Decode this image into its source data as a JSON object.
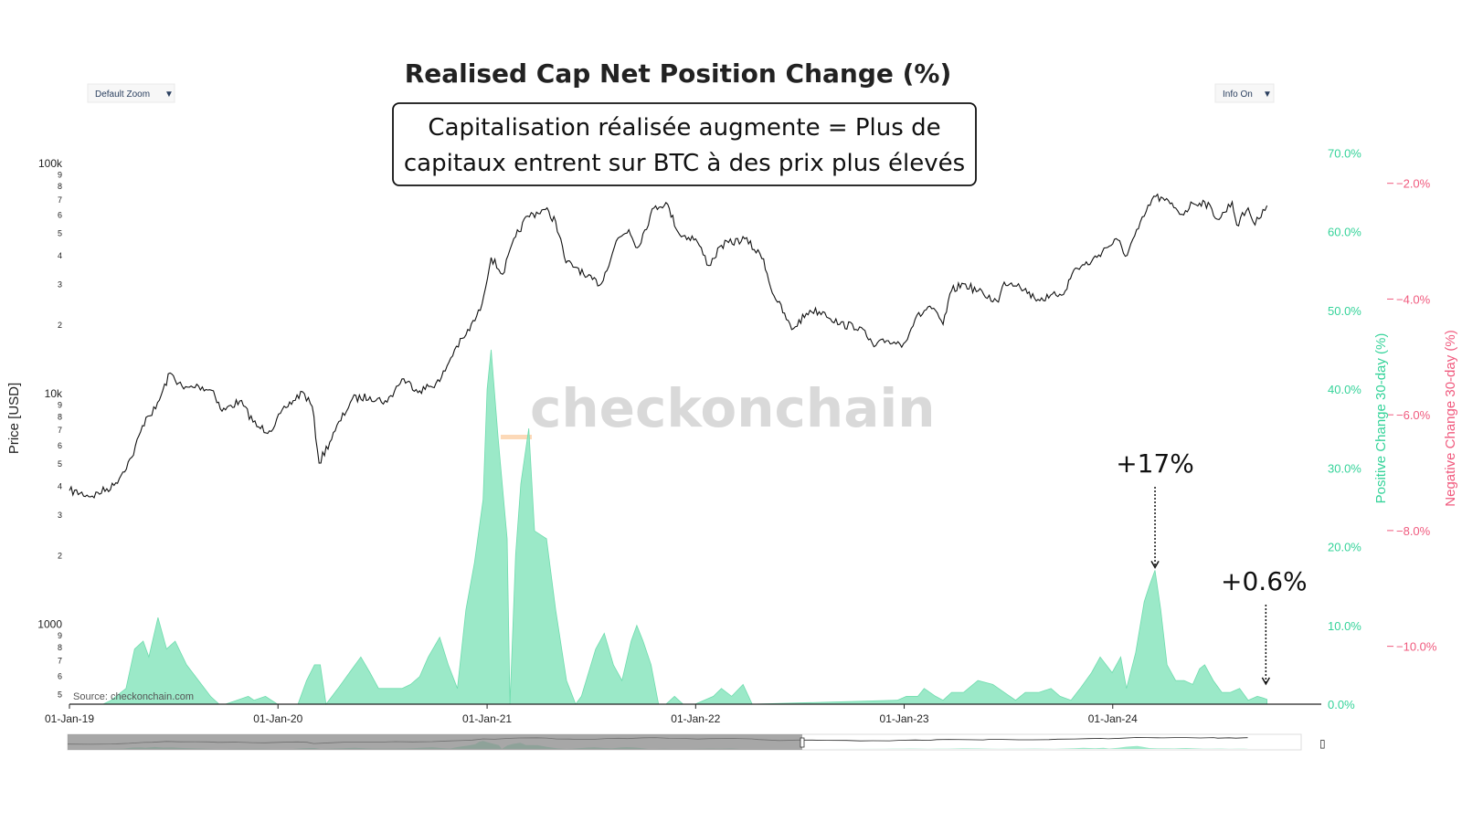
{
  "title": "Realised Cap Net Position Change (%)",
  "controls": {
    "zoom_label": "Default Zoom",
    "info_label": "Info On",
    "caret": "▼",
    "range_handle": "▯"
  },
  "callout": {
    "line1": "Capitalisation réalisée augmente = Plus de",
    "line2": "capitaux entrent sur BTC à des prix plus élevés"
  },
  "watermark": "checkonchain",
  "source": "Source: checkonchain.com",
  "annotations": [
    {
      "label": "+17%",
      "x": "2024-03-15",
      "y": 17
    },
    {
      "label": "+0.6%",
      "x": "2024-09-25",
      "y": 0.6
    }
  ],
  "colors": {
    "positive": "#34d399",
    "positive_fill": "#9be9c8",
    "negative": "#f05a7e",
    "price": "#111111"
  },
  "chart_data": {
    "type": "line",
    "title": "Realised Cap Net Position Change (%)",
    "x_ticks": [
      "01-Jan-19",
      "01-Jan-20",
      "01-Jan-21",
      "01-Jan-22",
      "01-Jan-23",
      "01-Jan-24"
    ],
    "xlim": [
      "2019-01-01",
      "2024-12-31"
    ],
    "y_left": {
      "label": "Price [USD]",
      "scale": "log",
      "ylim": [
        450,
        130000
      ],
      "ticks": [
        {
          "v": 500,
          "t": "5"
        },
        {
          "v": 600,
          "t": "6"
        },
        {
          "v": 700,
          "t": "7"
        },
        {
          "v": 800,
          "t": "8"
        },
        {
          "v": 900,
          "t": "9"
        },
        {
          "v": 1000,
          "t": "1000"
        },
        {
          "v": 2000,
          "t": "2"
        },
        {
          "v": 3000,
          "t": "3"
        },
        {
          "v": 4000,
          "t": "4"
        },
        {
          "v": 5000,
          "t": "5"
        },
        {
          "v": 6000,
          "t": "6"
        },
        {
          "v": 7000,
          "t": "7"
        },
        {
          "v": 8000,
          "t": "8"
        },
        {
          "v": 9000,
          "t": "9"
        },
        {
          "v": 10000,
          "t": "10k"
        },
        {
          "v": 20000,
          "t": "2"
        },
        {
          "v": 30000,
          "t": "3"
        },
        {
          "v": 40000,
          "t": "4"
        },
        {
          "v": 50000,
          "t": "5"
        },
        {
          "v": 60000,
          "t": "6"
        },
        {
          "v": 70000,
          "t": "7"
        },
        {
          "v": 80000,
          "t": "8"
        },
        {
          "v": 90000,
          "t": "9"
        },
        {
          "v": 100000,
          "t": "100k"
        }
      ]
    },
    "y_right_positive": {
      "label": "Positive Change 30-day (%)",
      "ylim": [
        0,
        72
      ],
      "ticks": [
        {
          "v": 0,
          "t": "0.0%"
        },
        {
          "v": 10,
          "t": "10.0%"
        },
        {
          "v": 20,
          "t": "20.0%"
        },
        {
          "v": 30,
          "t": "30.0%"
        },
        {
          "v": 40,
          "t": "40.0%"
        },
        {
          "v": 50,
          "t": "50.0%"
        },
        {
          "v": 60,
          "t": "60.0%"
        },
        {
          "v": 70,
          "t": "70.0%"
        }
      ]
    },
    "y_right_negative": {
      "label": "Negative Change 30-day (%)",
      "ylim": [
        -11.0,
        -1.2
      ],
      "ticks": [
        {
          "v": -2,
          "t": "−2.0%"
        },
        {
          "v": -4,
          "t": "−4.0%"
        },
        {
          "v": -6,
          "t": "−6.0%"
        },
        {
          "v": -8,
          "t": "−8.0%"
        },
        {
          "v": -10,
          "t": "−10.0%"
        }
      ]
    },
    "series": [
      {
        "type": "line",
        "name": "Price [USD]",
        "x": [
          "2019-01-01",
          "2019-02-10",
          "2019-03-20",
          "2019-04-20",
          "2019-05-15",
          "2019-06-01",
          "2019-06-26",
          "2019-07-20",
          "2019-08-15",
          "2019-09-10",
          "2019-09-25",
          "2019-10-26",
          "2019-11-25",
          "2019-12-17",
          "2020-01-15",
          "2020-02-13",
          "2020-03-01",
          "2020-03-13",
          "2020-04-10",
          "2020-05-10",
          "2020-06-10",
          "2020-07-10",
          "2020-08-05",
          "2020-09-05",
          "2020-10-10",
          "2020-11-05",
          "2020-11-25",
          "2020-12-20",
          "2021-01-08",
          "2021-01-28",
          "2021-02-20",
          "2021-03-13",
          "2021-04-13",
          "2021-05-01",
          "2021-05-19",
          "2021-06-10",
          "2021-06-22",
          "2021-07-20",
          "2021-08-15",
          "2021-09-06",
          "2021-09-21",
          "2021-10-20",
          "2021-11-10",
          "2021-12-04",
          "2022-01-01",
          "2022-01-24",
          "2022-02-15",
          "2022-03-28",
          "2022-04-30",
          "2022-05-12",
          "2022-06-18",
          "2022-07-20",
          "2022-08-15",
          "2022-09-10",
          "2022-10-15",
          "2022-11-09",
          "2022-12-01",
          "2022-12-31",
          "2023-01-20",
          "2023-02-15",
          "2023-03-10",
          "2023-03-25",
          "2023-04-15",
          "2023-05-20",
          "2023-06-15",
          "2023-06-25",
          "2023-07-20",
          "2023-08-17",
          "2023-09-11",
          "2023-10-10",
          "2023-10-25",
          "2023-11-25",
          "2023-12-20",
          "2024-01-10",
          "2024-01-23",
          "2024-02-15",
          "2024-03-13",
          "2024-04-01",
          "2024-04-20",
          "2024-05-01",
          "2024-05-20",
          "2024-06-10",
          "2024-07-05",
          "2024-07-28",
          "2024-08-05",
          "2024-08-25",
          "2024-09-06",
          "2024-09-20",
          "2024-09-27"
        ],
        "y": [
          3800,
          3600,
          4000,
          5300,
          7900,
          8600,
          12300,
          10500,
          10800,
          10300,
          8400,
          9300,
          7200,
          6900,
          8700,
          10200,
          8800,
          5000,
          6900,
          9500,
          9700,
          9200,
          11600,
          10300,
          11300,
          15500,
          18000,
          23000,
          39000,
          33000,
          48000,
          59000,
          63000,
          56000,
          37000,
          35000,
          32000,
          30000,
          46000,
          51500,
          43000,
          64000,
          67500,
          49000,
          47000,
          36000,
          44000,
          47000,
          38500,
          29000,
          19000,
          23000,
          22500,
          20000,
          19500,
          16000,
          17000,
          16500,
          21000,
          24000,
          20000,
          28000,
          30000,
          27000,
          25000,
          30500,
          30000,
          26000,
          26000,
          28000,
          34500,
          37500,
          43000,
          46500,
          39500,
          52000,
          72000,
          69000,
          64000,
          60000,
          67000,
          68000,
          57000,
          68000,
          54000,
          64000,
          54000,
          63000,
          65500
        ]
      },
      {
        "type": "area",
        "name": "Positive Change 30-day (%)",
        "x": [
          "2019-03-01",
          "2019-03-15",
          "2019-04-10",
          "2019-04-25",
          "2019-05-10",
          "2019-05-20",
          "2019-06-05",
          "2019-06-20",
          "2019-07-05",
          "2019-07-25",
          "2019-08-15",
          "2019-09-05",
          "2019-09-20",
          "2019-10-01",
          "2019-11-10",
          "2019-11-20",
          "2019-12-10",
          "2019-12-31",
          "2020-02-05",
          "2020-02-20",
          "2020-03-05",
          "2020-03-15",
          "2020-03-25",
          "2020-04-15",
          "2020-05-05",
          "2020-05-25",
          "2020-06-10",
          "2020-06-25",
          "2020-07-20",
          "2020-08-05",
          "2020-08-20",
          "2020-09-05",
          "2020-09-20",
          "2020-10-10",
          "2020-10-25",
          "2020-11-10",
          "2020-11-25",
          "2020-12-10",
          "2020-12-25",
          "2021-01-01",
          "2021-01-08",
          "2021-01-20",
          "2021-02-05",
          "2021-02-10",
          "2021-02-20",
          "2021-03-01",
          "2021-03-15",
          "2021-03-25",
          "2021-04-15",
          "2021-05-01",
          "2021-05-20",
          "2021-06-05",
          "2021-06-15",
          "2021-07-10",
          "2021-07-25",
          "2021-08-10",
          "2021-08-25",
          "2021-09-10",
          "2021-09-20",
          "2021-10-01",
          "2021-10-15",
          "2021-10-28",
          "2021-11-10",
          "2021-11-25",
          "2021-12-10",
          "2021-12-31",
          "2022-02-01",
          "2022-02-15",
          "2022-03-05",
          "2022-03-25",
          "2022-04-10",
          "2022-12-20",
          "2023-01-05",
          "2023-01-25",
          "2023-02-05",
          "2023-02-25",
          "2023-03-10",
          "2023-03-25",
          "2023-04-15",
          "2023-05-10",
          "2023-06-05",
          "2023-06-25",
          "2023-07-15",
          "2023-08-01",
          "2023-08-25",
          "2023-09-15",
          "2023-10-01",
          "2023-10-20",
          "2023-11-05",
          "2023-11-25",
          "2023-12-10",
          "2023-12-31",
          "2024-01-15",
          "2024-01-25",
          "2024-02-10",
          "2024-02-25",
          "2024-03-05",
          "2024-03-15",
          "2024-03-25",
          "2024-04-05",
          "2024-04-20",
          "2024-05-05",
          "2024-05-20",
          "2024-06-01",
          "2024-06-10",
          "2024-06-25",
          "2024-07-10",
          "2024-07-25",
          "2024-08-10",
          "2024-08-25",
          "2024-09-10",
          "2024-09-20",
          "2024-09-27"
        ],
        "y": [
          0,
          0.5,
          2,
          7,
          8,
          6,
          11,
          7,
          8,
          5,
          3,
          1,
          0,
          0,
          1,
          0.5,
          1,
          0,
          0,
          3,
          5,
          5,
          0,
          2,
          4,
          6,
          4,
          2,
          2,
          2,
          2.5,
          3.5,
          6,
          8.5,
          5,
          2,
          12,
          18,
          26,
          40,
          45,
          34,
          21,
          0,
          19,
          28,
          35,
          22,
          21,
          12,
          3,
          0,
          1,
          7,
          9,
          5,
          3,
          8,
          10,
          8,
          5,
          0,
          0,
          1,
          0,
          0,
          1,
          2,
          1,
          2.5,
          0,
          0.5,
          1,
          1,
          2,
          1,
          0.5,
          1.5,
          1.5,
          3,
          2.5,
          1.5,
          0.5,
          1.5,
          1.5,
          2,
          1,
          0.5,
          2,
          4,
          6,
          4,
          6,
          2,
          6.5,
          13,
          15,
          17,
          12,
          5,
          3,
          3,
          2.5,
          4.5,
          5,
          3,
          1.5,
          1.5,
          2,
          0.5,
          1,
          0.8,
          0.6
        ]
      }
    ]
  }
}
